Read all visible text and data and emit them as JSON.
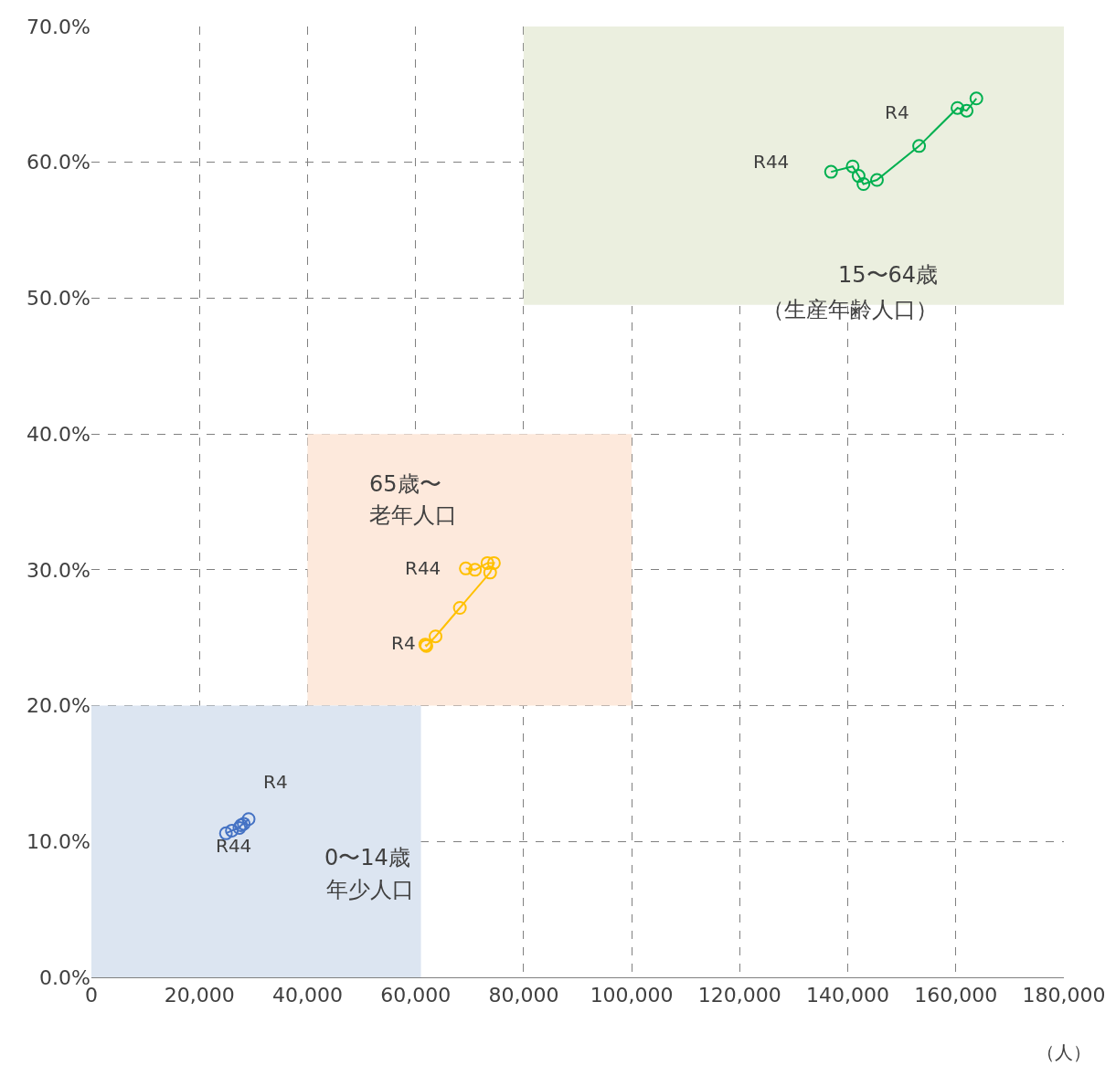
{
  "chart_data": {
    "type": "line",
    "marker": "circle",
    "xlabel": "（人）",
    "series": [
      {
        "type": "area",
        "marker": "none",
        "color": "#ebefdf",
        "x": [
          80000,
          180000,
          180000,
          80000
        ],
        "values": [
          49.5,
          49.5,
          70,
          70
        ]
      },
      {
        "type": "area",
        "marker": "none",
        "color": "#fde9dc",
        "x": [
          40000,
          100000,
          100000,
          40000
        ],
        "values": [
          20,
          20,
          40,
          40
        ]
      },
      {
        "type": "area",
        "marker": "none",
        "color": "#dce5f1",
        "x": [
          0,
          61000,
          61000,
          0
        ],
        "values": [
          0,
          0,
          20,
          20
        ]
      },
      {
        "color": "#00b050",
        "x": [
          163800,
          162000,
          160300,
          153200,
          145400,
          142900,
          142000,
          140900,
          136900
        ],
        "values": [
          64.7,
          63.8,
          64.0,
          61.2,
          58.7,
          58.4,
          59.0,
          59.7,
          59.3
        ]
      },
      {
        "color": "#ffc000",
        "x": [
          61800,
          62000,
          63700,
          68200,
          73800,
          74500,
          73300,
          71000,
          69300
        ],
        "values": [
          24.5,
          24.4,
          25.1,
          27.2,
          29.8,
          30.5,
          30.5,
          30.0,
          30.1
        ]
      },
      {
        "color": "#4472c4",
        "x": [
          29100,
          28200,
          27700,
          27400,
          26000,
          24900
        ],
        "values": [
          11.65,
          11.3,
          11.2,
          11.0,
          10.8,
          10.6
        ]
      }
    ],
    "annotations": [
      "R4",
      "R44",
      "R44",
      "R4",
      "R4",
      "R44",
      "15〜64歳",
      "（生産年齢人口）",
      "65歳〜",
      "老年人口",
      "0〜14歳",
      "年少人口"
    ],
    "xlim": [
      0,
      180000
    ],
    "ylim": [
      0,
      70
    ],
    "xticks": [
      0,
      {
        "value": 20000,
        "label": "20,000"
      },
      {
        "value": 40000,
        "label": "40,000"
      },
      {
        "value": 60000,
        "label": "60,000"
      },
      {
        "value": 80000,
        "label": "80,000"
      },
      {
        "value": 100000,
        "label": "100,000"
      },
      {
        "value": 120000,
        "label": "120,000"
      },
      {
        "value": 140000,
        "label": "140,000"
      },
      {
        "value": 160000,
        "label": "160,000"
      },
      {
        "value": 180000,
        "label": "180,000"
      }
    ],
    "yticks": [
      {
        "value": 0,
        "label": "0.0%"
      },
      {
        "value": 10,
        "label": "10.0%"
      },
      {
        "value": 20,
        "label": "20.0%"
      },
      {
        "value": 30,
        "label": "30.0%"
      },
      {
        "value": 40,
        "label": "40.0%"
      },
      {
        "value": 50,
        "label": "50.0%"
      },
      {
        "value": 60,
        "label": "60.0%"
      },
      {
        "value": 70,
        "label": "70.0%"
      }
    ],
    "grid": true,
    "line_style": "solid"
  }
}
